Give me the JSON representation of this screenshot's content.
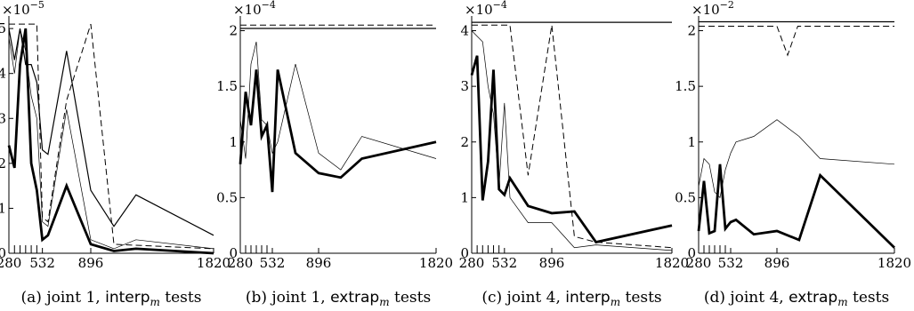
{
  "chart_data": [
    {
      "type": "line",
      "caption": {
        "prefix": "(a) joint 1, ",
        "mode": "interp",
        "sub": "m",
        "suffix": " tests"
      },
      "scale_label": {
        "base": "×10",
        "exp": "−5"
      },
      "ylim": [
        0,
        5.2
      ],
      "yticks": [
        0,
        1,
        2,
        3,
        4,
        5
      ],
      "ytick_labels": [
        "0",
        "1",
        "2",
        "3",
        "4",
        "5"
      ],
      "xlim": [
        280,
        1820
      ],
      "xticks": [
        280,
        532,
        896,
        1820
      ],
      "xtick_labels": [
        "280",
        "532",
        "896",
        "1820"
      ],
      "minor_xticks": [
        322,
        364,
        406,
        448,
        490
      ],
      "series": [
        {
          "style": "dashed",
          "width": 1.0,
          "x": [
            280,
            322,
            364,
            406,
            448,
            490,
            532,
            574,
            714,
            896,
            1070,
            1820
          ],
          "y": [
            5.1,
            5.1,
            5.1,
            5.1,
            5.1,
            5.1,
            0.8,
            0.7,
            3.4,
            5.1,
            0.2,
            0.1
          ]
        },
        {
          "style": "solid",
          "width": 1.2,
          "x": [
            280,
            322,
            364,
            406,
            448,
            490,
            532,
            574,
            714,
            896,
            1070,
            1236,
            1820
          ],
          "y": [
            5.0,
            4.3,
            5.0,
            4.2,
            4.2,
            3.8,
            2.3,
            2.2,
            4.5,
            1.4,
            0.6,
            1.3,
            0.4
          ]
        },
        {
          "style": "solid",
          "width": 0.7,
          "x": [
            280,
            322,
            364,
            406,
            448,
            490,
            532,
            574,
            714,
            896,
            1070,
            1236,
            1820
          ],
          "y": [
            4.8,
            4.0,
            5.0,
            4.5,
            3.5,
            3.0,
            0.7,
            0.6,
            3.2,
            0.3,
            0.1,
            0.3,
            0.1
          ]
        },
        {
          "style": "solid",
          "width": 2.8,
          "x": [
            280,
            322,
            364,
            406,
            448,
            490,
            532,
            574,
            714,
            896,
            1070,
            1236,
            1820
          ],
          "y": [
            2.4,
            1.9,
            4.2,
            5.0,
            2.0,
            1.4,
            0.3,
            0.4,
            1.5,
            0.2,
            0.05,
            0.1,
            0.0
          ]
        }
      ]
    },
    {
      "type": "line",
      "caption": {
        "prefix": "(b) joint 1, ",
        "mode": "extrap",
        "sub": "m",
        "suffix": " tests"
      },
      "scale_label": {
        "base": "×10",
        "exp": "−4"
      },
      "ylim": [
        0,
        2.1
      ],
      "yticks": [
        0,
        0.5,
        1,
        1.5,
        2
      ],
      "ytick_labels": [
        "0",
        "0.5",
        "1",
        "1.5",
        "2"
      ],
      "xlim": [
        280,
        1820
      ],
      "xticks": [
        280,
        532,
        896,
        1820
      ],
      "xtick_labels": [
        "280",
        "532",
        "896",
        "1820"
      ],
      "minor_xticks": [
        322,
        364,
        406,
        448,
        490
      ],
      "series": [
        {
          "style": "dashed",
          "width": 1.0,
          "x": [
            280,
            1820
          ],
          "y": [
            2.05,
            2.05
          ]
        },
        {
          "style": "solid",
          "width": 1.2,
          "x": [
            280,
            1820
          ],
          "y": [
            2.02,
            2.02
          ]
        },
        {
          "style": "solid",
          "width": 0.7,
          "x": [
            280,
            322,
            364,
            406,
            448,
            490,
            532,
            574,
            714,
            896,
            1070,
            1236,
            1820
          ],
          "y": [
            1.2,
            0.85,
            1.7,
            1.9,
            1.2,
            1.15,
            0.9,
            1.0,
            1.7,
            0.9,
            0.75,
            1.05,
            0.85
          ]
        },
        {
          "style": "solid",
          "width": 2.8,
          "x": [
            280,
            322,
            364,
            406,
            448,
            490,
            532,
            574,
            714,
            896,
            1070,
            1236,
            1820
          ],
          "y": [
            0.8,
            1.45,
            1.15,
            1.65,
            1.05,
            1.15,
            0.55,
            1.65,
            0.9,
            0.72,
            0.68,
            0.85,
            1.0
          ]
        }
      ]
    },
    {
      "type": "line",
      "caption": {
        "prefix": "(c) joint 4, ",
        "mode": "interp",
        "sub": "m",
        "suffix": " tests"
      },
      "scale_label": {
        "base": "×10",
        "exp": "−4"
      },
      "ylim": [
        0,
        4.2
      ],
      "yticks": [
        0,
        1,
        2,
        3,
        4
      ],
      "ytick_labels": [
        "0",
        "1",
        "2",
        "3",
        "4"
      ],
      "xlim": [
        280,
        1820
      ],
      "xticks": [
        280,
        532,
        896,
        1820
      ],
      "xtick_labels": [
        "280",
        "532",
        "896",
        "1820"
      ],
      "minor_xticks": [
        322,
        364,
        406,
        448,
        490
      ],
      "series": [
        {
          "style": "dashed",
          "width": 1.0,
          "x": [
            280,
            322,
            364,
            406,
            448,
            490,
            532,
            574,
            714,
            896,
            1070,
            1236,
            1820
          ],
          "y": [
            4.1,
            4.1,
            4.1,
            4.1,
            4.1,
            4.1,
            4.1,
            4.1,
            1.4,
            4.1,
            0.3,
            0.2,
            0.1
          ]
        },
        {
          "style": "solid",
          "width": 1.2,
          "x": [
            280,
            1820
          ],
          "y": [
            4.15,
            4.15
          ]
        },
        {
          "style": "solid",
          "width": 0.7,
          "x": [
            280,
            322,
            364,
            406,
            448,
            490,
            532,
            574,
            714,
            896,
            1070,
            1236,
            1820
          ],
          "y": [
            4.0,
            3.9,
            3.8,
            3.0,
            2.5,
            1.2,
            2.7,
            1.0,
            0.55,
            0.55,
            0.1,
            0.15,
            0.05
          ]
        },
        {
          "style": "solid",
          "width": 2.8,
          "x": [
            280,
            322,
            364,
            406,
            448,
            490,
            532,
            574,
            714,
            896,
            1070,
            1236,
            1820
          ],
          "y": [
            3.2,
            3.55,
            0.95,
            1.65,
            3.3,
            1.15,
            1.05,
            1.35,
            0.85,
            0.72,
            0.75,
            0.2,
            0.5
          ]
        }
      ]
    },
    {
      "type": "line",
      "caption": {
        "prefix": "(d) joint 4, ",
        "mode": "extrap",
        "sub": "m",
        "suffix": " tests"
      },
      "scale_label": {
        "base": "×10",
        "exp": "−2"
      },
      "ylim": [
        0,
        2.1
      ],
      "yticks": [
        0,
        0.5,
        1,
        1.5,
        2
      ],
      "ytick_labels": [
        "0",
        "0.5",
        "1",
        "1.5",
        "2"
      ],
      "xlim": [
        280,
        1820
      ],
      "xticks": [
        280,
        532,
        896,
        1820
      ],
      "xtick_labels": [
        "280",
        "532",
        "896",
        "1820"
      ],
      "minor_xticks": [
        322,
        364,
        406,
        448,
        490
      ],
      "series": [
        {
          "style": "dashed",
          "width": 1.0,
          "x": [
            280,
            896,
            980,
            1060,
            1820
          ],
          "y": [
            2.04,
            2.04,
            1.78,
            2.04,
            2.04
          ]
        },
        {
          "style": "solid",
          "width": 1.2,
          "x": [
            280,
            1820
          ],
          "y": [
            2.08,
            2.08
          ]
        },
        {
          "style": "solid",
          "width": 0.7,
          "x": [
            280,
            322,
            364,
            406,
            448,
            490,
            532,
            574,
            714,
            896,
            1070,
            1236,
            1820
          ],
          "y": [
            0.6,
            0.85,
            0.8,
            0.55,
            0.5,
            0.75,
            0.9,
            1.0,
            1.05,
            1.2,
            1.05,
            0.85,
            0.8
          ]
        },
        {
          "style": "solid",
          "width": 2.8,
          "x": [
            280,
            322,
            364,
            406,
            448,
            490,
            532,
            574,
            714,
            896,
            1070,
            1236,
            1820
          ],
          "y": [
            0.2,
            0.65,
            0.18,
            0.2,
            0.8,
            0.22,
            0.28,
            0.3,
            0.17,
            0.2,
            0.12,
            0.7,
            0.05
          ]
        }
      ]
    }
  ]
}
